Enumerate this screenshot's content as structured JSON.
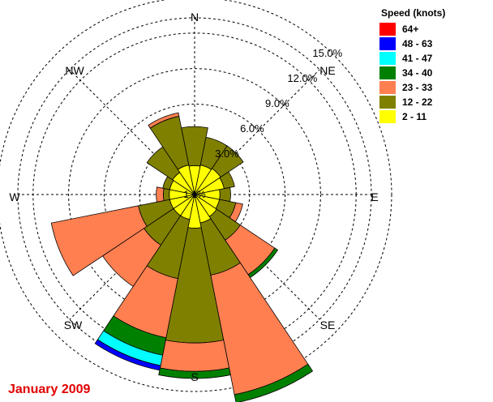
{
  "chart_data": {
    "type": "wind-rose",
    "title": "",
    "caption": "January 2009",
    "calm_label": "1.1%",
    "direction_labels": [
      "N",
      "NE",
      "E",
      "SE",
      "S",
      "SW",
      "W",
      "NW"
    ],
    "ring_values": [
      3,
      6,
      9,
      12,
      15
    ],
    "ring_labels": [
      "3.0%",
      "6.0%",
      "9.0%",
      "12.0%",
      "15.0%"
    ],
    "legend": {
      "title": "Speed (knots)",
      "bins": [
        {
          "label": "64+",
          "color": "#ff0000"
        },
        {
          "label": "48 - 63",
          "color": "#0000ff"
        },
        {
          "label": "41 - 47",
          "color": "#00ffff"
        },
        {
          "label": "34 - 40",
          "color": "#008000"
        },
        {
          "label": "23 - 33",
          "color": "#ff7f50"
        },
        {
          "label": "12 - 22",
          "color": "#808000"
        },
        {
          "label": "2 - 11",
          "color": "#ffff00"
        }
      ]
    },
    "stack_order": [
      "2 - 11",
      "12 - 22",
      "23 - 33",
      "34 - 40",
      "41 - 47",
      "48 - 63",
      "64+"
    ],
    "sectors": [
      {
        "direction": 0,
        "cumulative": [
          0.8,
          4.1,
          4.1,
          4.1,
          4.1,
          4.1,
          4.1
        ]
      },
      {
        "direction": 22.5,
        "cumulative": [
          0.9,
          3.3,
          3.3,
          3.3,
          3.3,
          3.3,
          3.3
        ]
      },
      {
        "direction": 45,
        "cumulative": [
          1.0,
          3.3,
          3.3,
          3.3,
          3.3,
          3.3,
          3.3
        ]
      },
      {
        "direction": 67.5,
        "cumulative": [
          0.9,
          1.8,
          1.8,
          1.8,
          1.8,
          1.8,
          1.8
        ]
      },
      {
        "direction": 90,
        "cumulative": [
          0.5,
          1.4,
          1.4,
          1.4,
          1.4,
          1.4,
          1.4
        ]
      },
      {
        "direction": 112.5,
        "cumulative": [
          0.5,
          1.9,
          2.5,
          2.5,
          2.5,
          2.5,
          2.5
        ]
      },
      {
        "direction": 135,
        "cumulative": [
          0.6,
          3.0,
          6.5,
          6.8,
          6.8,
          6.8,
          6.8
        ]
      },
      {
        "direction": 157.5,
        "cumulative": [
          0.8,
          5.3,
          15.6,
          16.3,
          16.3,
          16.3,
          16.3
        ]
      },
      {
        "direction": 180,
        "cumulative": [
          1.2,
          10.9,
          13.3,
          13.9,
          13.9,
          13.9,
          13.9
        ]
      },
      {
        "direction": 202.5,
        "cumulative": [
          0.5,
          5.6,
          10.7,
          12.2,
          13.1,
          13.5,
          13.5
        ]
      },
      {
        "direction": 225,
        "cumulative": [
          0.5,
          3.5,
          7.7,
          7.7,
          7.7,
          7.7,
          7.7
        ]
      },
      {
        "direction": 247.5,
        "cumulative": [
          0.5,
          3.2,
          10.7,
          10.7,
          10.7,
          10.7,
          10.7
        ]
      },
      {
        "direction": 270,
        "cumulative": [
          0.5,
          1.0,
          1.6,
          1.6,
          1.6,
          1.6,
          1.6
        ]
      },
      {
        "direction": 292.5,
        "cumulative": [
          0.5,
          1.1,
          1.1,
          1.1,
          1.1,
          1.1,
          1.1
        ]
      },
      {
        "direction": 315,
        "cumulative": [
          0.6,
          3.2,
          3.2,
          3.2,
          3.2,
          3.2,
          3.2
        ]
      },
      {
        "direction": 337.5,
        "cumulative": [
          0.9,
          5.1,
          5.4,
          5.4,
          5.4,
          5.4,
          5.4
        ]
      }
    ],
    "grid": true,
    "legend_position": "top-right"
  }
}
